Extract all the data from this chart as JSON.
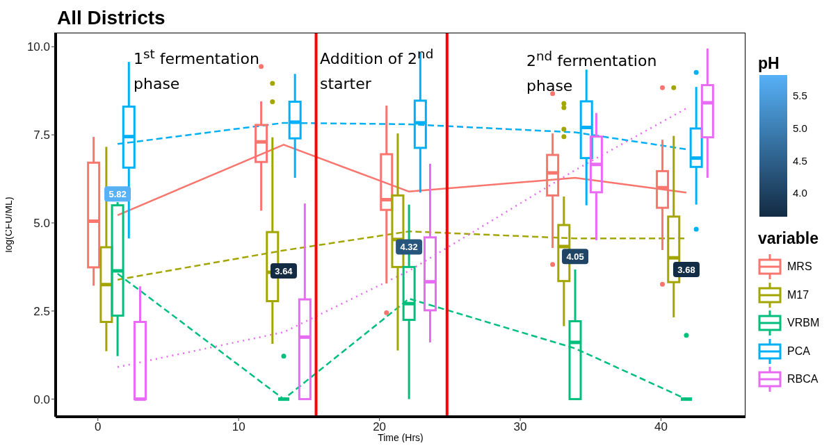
{
  "chart_data": {
    "type": "box",
    "title": "All Districts",
    "xlabel": "Time (Hrs)",
    "ylabel": "log(CFU/ML)",
    "legend_title": "variable",
    "clabel": "pH",
    "legend": "right",
    "annotations": [
      "1$^{st}$ fermentation phase",
      "Addition of 2$^{nd}$ starter",
      "2$^{nd}$ fermentation phase"
    ],
    "xlim": [
      -3,
      46
    ],
    "xticks": [
      0,
      10,
      20,
      30,
      40
    ],
    "ylim": [
      -0.5,
      10.4
    ],
    "yticks": [
      {
        "value": 0,
        "label": "0.0"
      },
      {
        "value": 2.5,
        "label": "2.5"
      },
      {
        "value": 5,
        "label": "5.0"
      },
      {
        "value": 7.5,
        "label": "7.5"
      },
      {
        "value": 10,
        "label": "10.0"
      }
    ],
    "clim": [
      3.64,
      5.82
    ],
    "cticks": [
      {
        "value": 4,
        "label": "4.0"
      },
      {
        "value": 4.5,
        "label": "4.5"
      },
      {
        "value": 5,
        "label": "5.0"
      },
      {
        "value": 5.5,
        "label": "5.5"
      }
    ],
    "colors": [
      "#132b43",
      "#56b1f7"
    ],
    "ref_lines": [
      {
        "axis": "x",
        "value": 15.5,
        "color": "#ff0000"
      },
      {
        "axis": "x",
        "value": 24.8,
        "color": "#ff0000"
      }
    ],
    "series": [
      {
        "name": "MRS",
        "color": "#f8766d",
        "x": [
          -0.3,
          11.6,
          20.5,
          32.3,
          40.1
        ],
        "boxes": [
          {
            "low": 3.22,
            "q1": 3.74,
            "median": 5.05,
            "q3": 6.71,
            "high": 7.44
          },
          {
            "low": 5.35,
            "q1": 6.73,
            "median": 7.3,
            "q3": 7.78,
            "high": 8.45,
            "outliers": [
              9.44
            ]
          },
          {
            "low": 3.28,
            "q1": 5.37,
            "median": 5.66,
            "q3": 6.95,
            "high": 8.33,
            "outliers": [
              2.45
            ]
          },
          {
            "low": 4.29,
            "q1": 5.78,
            "median": 6.42,
            "q3": 6.93,
            "high": 7.54,
            "outliers": [
              8.67,
              3.82
            ]
          },
          {
            "low": 4.23,
            "q1": 5.43,
            "median": 6.0,
            "q3": 6.47,
            "high": 7.36,
            "outliers": [
              8.84,
              3.26
            ]
          }
        ]
      },
      {
        "name": "M17",
        "color": "#a3a500",
        "x": [
          0.6,
          12.4,
          21.3,
          33.1,
          40.9
        ],
        "boxes": [
          {
            "low": 1.36,
            "q1": 2.19,
            "median": 3.25,
            "q3": 4.31,
            "high": 7.16
          },
          {
            "low": 1.57,
            "q1": 2.78,
            "median": 3.6,
            "q3": 4.74,
            "high": 7.43,
            "outliers": [
              8.96,
              8.44
            ]
          },
          {
            "low": 1.38,
            "q1": 3.75,
            "median": 4.53,
            "q3": 5.78,
            "high": 7.54
          },
          {
            "low": 2.07,
            "q1": 3.35,
            "median": 4.33,
            "q3": 4.94,
            "high": 5.75,
            "outliers": [
              8.39,
              8.27,
              7.66,
              7.45
            ]
          },
          {
            "low": 2.32,
            "q1": 3.32,
            "median": 4.01,
            "q3": 5.18,
            "high": 7.47,
            "outliers": [
              8.84
            ]
          }
        ]
      },
      {
        "name": "VRBM",
        "color": "#00bf7d",
        "x": [
          1.4,
          13.2,
          22.1,
          33.9,
          41.8
        ],
        "boxes": [
          {
            "low": 1.22,
            "q1": 2.37,
            "median": 3.64,
            "q3": 5.5,
            "high": 5.59
          },
          {
            "low": 0,
            "q1": 0,
            "median": 0,
            "q3": 0,
            "high": 0,
            "outliers": [
              1.22
            ]
          },
          {
            "low": 0,
            "q1": 2.25,
            "median": 2.71,
            "q3": 3.75,
            "high": 5.52
          },
          {
            "low": 0,
            "q1": 0,
            "median": 1.61,
            "q3": 2.21,
            "high": 3.68
          },
          {
            "low": 0,
            "q1": 0,
            "median": 0,
            "q3": 0,
            "high": 0,
            "outliers": [
              1.81
            ]
          }
        ]
      },
      {
        "name": "PCA",
        "color": "#00b0f6",
        "x": [
          2.2,
          14.0,
          22.9,
          34.7,
          42.5
        ],
        "boxes": [
          {
            "low": 4.56,
            "q1": 6.57,
            "median": 7.45,
            "q3": 8.3,
            "high": 9.57
          },
          {
            "low": 6.28,
            "q1": 7.4,
            "median": 7.86,
            "q3": 8.44,
            "high": 9.23
          },
          {
            "low": 5.86,
            "q1": 7.13,
            "median": 7.84,
            "q3": 8.47,
            "high": 9.83
          },
          {
            "low": 5.5,
            "q1": 6.84,
            "median": 7.71,
            "q3": 8.45,
            "high": 9.35
          },
          {
            "low": 5.52,
            "q1": 6.59,
            "median": 6.84,
            "q3": 7.68,
            "high": 8.86,
            "outliers": [
              9.27,
              4.82
            ]
          }
        ]
      },
      {
        "name": "RBCA",
        "color": "#e76bf3",
        "x": [
          3.0,
          14.7,
          23.6,
          35.4,
          43.3
        ],
        "boxes": [
          {
            "low": 0,
            "q1": 0,
            "median": 0,
            "q3": 2.19,
            "high": 3.2
          },
          {
            "low": 0,
            "q1": 0,
            "median": 1.76,
            "q3": 2.83,
            "high": 5.55
          },
          {
            "low": 1.61,
            "q1": 2.52,
            "median": 3.33,
            "q3": 4.59,
            "high": 6.68
          },
          {
            "low": 4.51,
            "q1": 5.87,
            "median": 6.66,
            "q3": 7.45,
            "high": 8.12
          },
          {
            "low": 6.28,
            "q1": 7.43,
            "median": 8.41,
            "q3": 8.91,
            "high": 9.95
          }
        ]
      },
      {
        "type": "line",
        "color": "#f8766d",
        "line_style": "solid",
        "x": [
          1.4,
          13.2,
          22.1,
          33.9,
          41.8
        ],
        "values": [
          5.22,
          7.22,
          5.89,
          6.28,
          5.86
        ]
      },
      {
        "type": "line",
        "color": "#a3a500",
        "line_style": "dashed",
        "x": [
          1.4,
          13.2,
          22.1,
          33.9,
          41.8
        ],
        "values": [
          3.39,
          4.22,
          4.76,
          4.56,
          4.56
        ]
      },
      {
        "type": "line",
        "color": "#00bf7d",
        "line_style": "dashed",
        "x": [
          1.4,
          13.2,
          22.1,
          33.9,
          41.8
        ],
        "values": [
          3.56,
          0,
          2.85,
          1.44,
          0
        ]
      },
      {
        "type": "line",
        "color": "#00b0f6",
        "line_style": "dashed",
        "x": [
          1.4,
          13.2,
          22.1,
          33.9,
          41.8
        ],
        "values": [
          7.24,
          7.84,
          7.8,
          7.57,
          7.09
        ]
      },
      {
        "type": "line",
        "color": "#e76bf3",
        "line_style": "dotted",
        "x": [
          1.4,
          13.2,
          22.1,
          33.9,
          41.8
        ],
        "values": [
          0.91,
          1.9,
          3.64,
          6.5,
          8.25
        ]
      },
      {
        "type": "scatter",
        "x": [
          1.4,
          13.2,
          22.1,
          33.9,
          41.8
        ],
        "values": [
          5.82,
          3.64,
          4.32,
          4.05,
          3.68
        ],
        "cvalues": [
          5.82,
          3.64,
          4.32,
          4.05,
          3.68
        ],
        "colors": [
          "#56b1f7",
          "#132b43",
          "#28557b",
          "#204465",
          "#142d46"
        ],
        "data_labels": true
      }
    ]
  }
}
